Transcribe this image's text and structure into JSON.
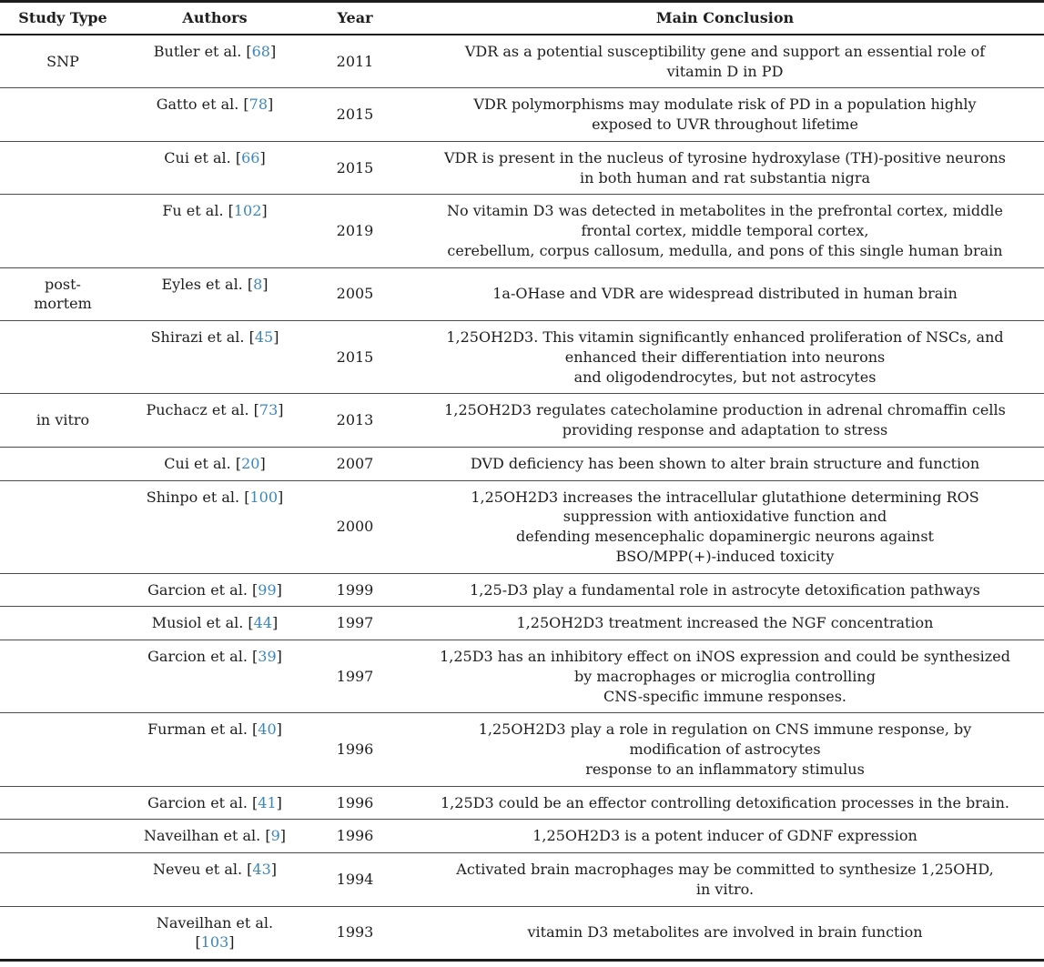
{
  "colors": {
    "reference_link": "#3a87bb",
    "text": "#1e1e1e",
    "rule": "#1c1c1c"
  },
  "header": {
    "col_study_type": "Study Type",
    "col_authors": "Authors",
    "col_year": "Year",
    "col_conclusion": "Main Conclusion"
  },
  "rows": [
    {
      "study_type": "SNP",
      "author": "Butler et al.",
      "ref": "68",
      "year": "2011",
      "conclusion": [
        "VDR as a potential susceptibility gene and support an essential role of",
        "vitamin D in PD"
      ]
    },
    {
      "study_type": "",
      "author": "Gatto et al.",
      "ref": "78",
      "year": "2015",
      "conclusion": [
        "VDR polymorphisms may modulate risk of PD in a population highly",
        "exposed to UVR throughout lifetime"
      ]
    },
    {
      "study_type": "",
      "author": "Cui et al.",
      "ref": "66",
      "year": "2015",
      "conclusion": [
        "VDR is present in the nucleus of tyrosine hydroxylase (TH)-positive neurons",
        "in both human and rat substantia nigra"
      ]
    },
    {
      "study_type": "",
      "author": "Fu et al.",
      "ref": "102",
      "year": "2019",
      "conclusion": [
        "No vitamin D3 was detected in metabolites in the prefrontal cortex, middle",
        "frontal cortex, middle temporal cortex,",
        "cerebellum, corpus callosum, medulla, and pons of this single human brain"
      ]
    },
    {
      "study_type": "post-\nmortem",
      "author": "Eyles et al.",
      "ref": "8",
      "year": "2005",
      "conclusion": [
        "1a-OHase and VDR are widespread distributed in human brain"
      ]
    },
    {
      "study_type": "",
      "author": "Shirazi et al.",
      "ref": "45",
      "year": "2015",
      "conclusion": [
        "1,25OH2D3. This vitamin significantly enhanced proliferation of NSCs, and",
        "enhanced their differentiation into neurons",
        "and oligodendrocytes, but not astrocytes"
      ]
    },
    {
      "study_type": "in vitro",
      "author": "Puchacz et al.",
      "ref": "73",
      "year": "2013",
      "conclusion": [
        "1,25OH2D3 regulates catecholamine production in adrenal chromaffin cells",
        "providing response and adaptation to stress"
      ]
    },
    {
      "study_type": "",
      "author": "Cui et al.",
      "ref": "20",
      "year": "2007",
      "conclusion": [
        "DVD deficiency has been shown to alter brain structure and function"
      ]
    },
    {
      "study_type": "",
      "author": "Shinpo et al.",
      "ref": "100",
      "year": "2000",
      "conclusion": [
        "1,25OH2D3 increases the intracellular glutathione determining ROS",
        "suppression with antioxidative function and",
        "defending mesencephalic dopaminergic neurons against",
        "BSO/MPP(+)-induced toxicity"
      ]
    },
    {
      "study_type": "",
      "author": "Garcion et al.",
      "ref": "99",
      "year": "1999",
      "conclusion": [
        "1,25-D3 play a fundamental role in astrocyte detoxification pathways"
      ]
    },
    {
      "study_type": "",
      "author": "Musiol et al.",
      "ref": "44",
      "year": "1997",
      "conclusion": [
        "1,25OH2D3 treatment increased the NGF concentration"
      ]
    },
    {
      "study_type": "",
      "author": "Garcion et al.",
      "ref": "39",
      "year": "1997",
      "conclusion": [
        "1,25D3 has an inhibitory effect on iNOS expression and could be synthesized",
        "by macrophages or microglia controlling",
        "CNS-specific immune responses."
      ]
    },
    {
      "study_type": "",
      "author": "Furman et al.",
      "ref": "40",
      "year": "1996",
      "conclusion": [
        "1,25OH2D3 play a role in regulation on CNS immune response, by",
        "modification of astrocytes",
        "response to an inflammatory stimulus"
      ]
    },
    {
      "study_type": "",
      "author": "Garcion et al.",
      "ref": "41",
      "year": "1996",
      "conclusion": [
        "1,25D3 could be an effector controlling detoxification processes in the brain."
      ]
    },
    {
      "study_type": "",
      "author": "Naveilhan et al.",
      "ref": "9",
      "year": "1996",
      "conclusion": [
        "1,25OH2D3 is a potent inducer of GDNF expression"
      ]
    },
    {
      "study_type": "",
      "author": "Neveu et al.",
      "ref": "43",
      "year": "1994",
      "conclusion": [
        "Activated brain macrophages may be committed to synthesize 1,25OHD,",
        "in vitro."
      ]
    },
    {
      "study_type": "",
      "author": "Naveilhan et al.",
      "ref": "103",
      "year": "1993",
      "author_break": true,
      "conclusion": [
        "vitamin D3 metabolites are involved in brain function"
      ]
    }
  ]
}
